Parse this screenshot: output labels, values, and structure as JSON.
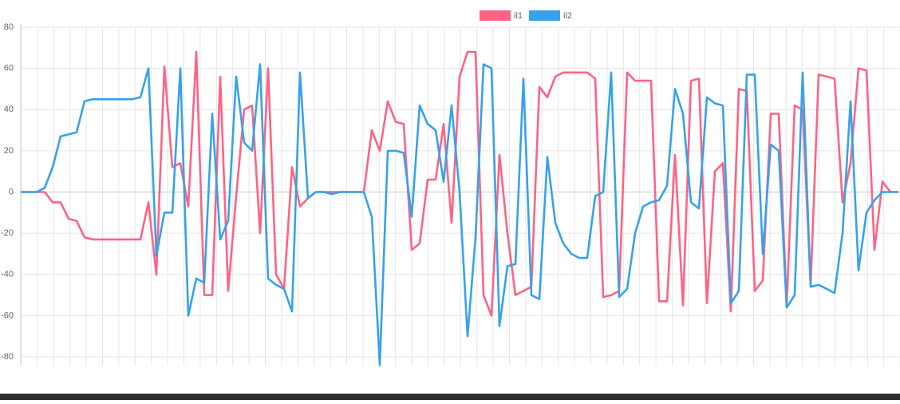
{
  "chart_data": {
    "type": "line",
    "series": [
      {
        "name": "il1",
        "color": "#ff6384",
        "values": [
          0,
          0,
          0,
          0,
          -5,
          -5,
          -13,
          -14,
          -22,
          -23,
          -23,
          -23,
          -23,
          -23,
          -23,
          -23,
          -5,
          -40,
          61,
          12,
          14,
          -7,
          68,
          -50,
          -50,
          56,
          -48,
          -2,
          40,
          42,
          -20,
          60,
          -40,
          -47,
          12,
          -7,
          -3,
          0,
          0,
          0,
          0,
          0,
          0,
          0,
          30,
          20,
          44,
          34,
          33,
          -28,
          -25,
          6,
          6,
          33,
          -15,
          56,
          68,
          68,
          -50,
          -60,
          18,
          -20,
          -50,
          -48,
          -46,
          51,
          46,
          56,
          58,
          58,
          58,
          58,
          55,
          -51,
          -50,
          -48,
          58,
          54,
          54,
          54,
          -53,
          -53,
          18,
          -55,
          54,
          55,
          -54,
          10,
          14,
          -58,
          50,
          49,
          -48,
          -43,
          38,
          38,
          -55,
          42,
          40,
          -45,
          57,
          56,
          55,
          -5,
          14,
          60,
          59,
          -28,
          5,
          0,
          0
        ]
      },
      {
        "name": "il2",
        "color": "#36a2eb",
        "values": [
          0,
          0,
          0,
          2,
          12,
          27,
          28,
          29,
          44,
          45,
          45,
          45,
          45,
          45,
          45,
          46,
          60,
          -31,
          -10,
          -10,
          60,
          -60,
          -42,
          -44,
          38,
          -23,
          -14,
          56,
          24,
          20,
          62,
          -42,
          -45,
          -47,
          -58,
          58,
          -3,
          0,
          0,
          -1,
          0,
          0,
          0,
          0,
          -12,
          -84,
          20,
          20,
          19,
          -12,
          42,
          33,
          30,
          5,
          42,
          0,
          -70,
          -22,
          62,
          60,
          -65,
          -36,
          -35,
          55,
          -50,
          -52,
          17,
          -15,
          -25,
          -30,
          -32,
          -32,
          -2,
          0,
          58,
          -51,
          -47,
          -20,
          -7,
          -5,
          -4,
          3,
          50,
          38,
          -5,
          -8,
          46,
          43,
          42,
          -54,
          -48,
          57,
          57,
          -30,
          23,
          20,
          -56,
          -50,
          58,
          -46,
          -45,
          -47,
          -49,
          -20,
          44,
          -38,
          -10,
          -4,
          0,
          0,
          0
        ]
      }
    ],
    "ylim": [
      -90,
      80
    ],
    "yticks": [
      -80,
      -60,
      -40,
      -20,
      0,
      20,
      40,
      60,
      80
    ],
    "grid": true,
    "legend": "top"
  }
}
